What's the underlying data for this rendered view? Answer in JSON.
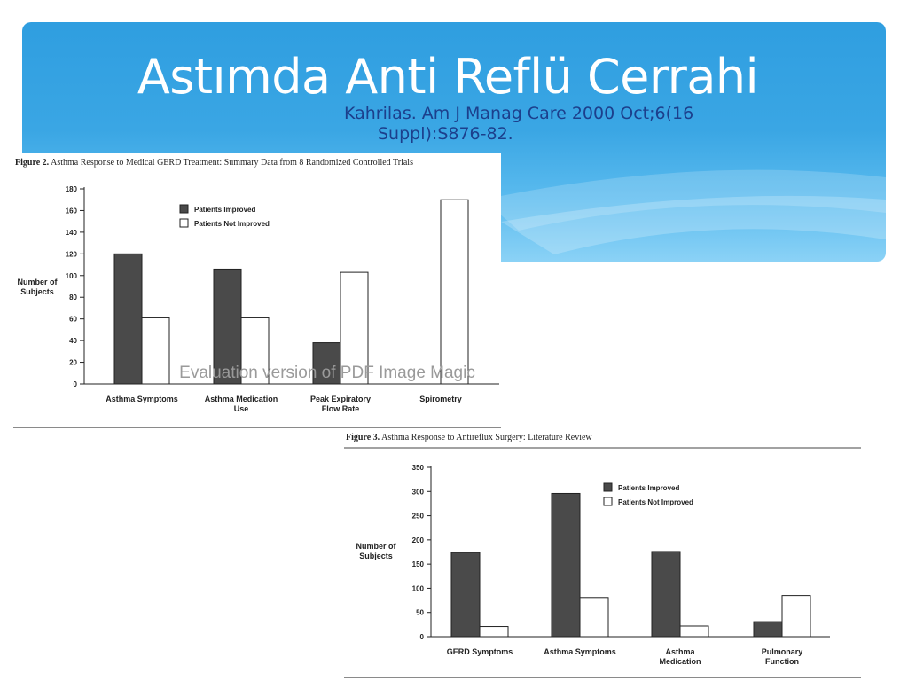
{
  "slide": {
    "title": "Astımda Anti Reflü Cerrahi",
    "citation_line1": "Kahrilas. Am J Manag Care 2000 Oct;6(16",
    "citation_line2": "Suppl):S876-82."
  },
  "figures": [
    {
      "caption_label": "Figure 2.",
      "caption_text": "Asthma Response to Medical GERD Treatment: Summary Data from 8 Randomized Controlled Trials",
      "watermark": "Evaluation version of PDF Image Magic"
    },
    {
      "caption_label": "Figure 3.",
      "caption_text": "Asthma Response to Antireflux Surgery: Literature Review"
    }
  ],
  "colors": {
    "improved": "#4a4a4a",
    "not_improved": "#ffffff",
    "banner": "#2f9ee0",
    "citation": "#1c3f8c"
  },
  "chart_data": [
    {
      "type": "bar",
      "title": "Asthma Response to Medical GERD Treatment: Summary Data from 8 Randomized Controlled Trials",
      "categories": [
        [
          "Asthma Symptoms"
        ],
        [
          "Asthma Medication",
          "Use"
        ],
        [
          "Peak Expiratory",
          "Flow Rate"
        ],
        [
          "Spirometry"
        ]
      ],
      "series": [
        {
          "name": "Patients Improved",
          "values": [
            120,
            106,
            38,
            0
          ]
        },
        {
          "name": "Patients Not Improved",
          "values": [
            61,
            61,
            103,
            170
          ]
        }
      ],
      "ylabel": [
        "Number of",
        "Subjects"
      ],
      "ylim": [
        0,
        180
      ],
      "yticks": [
        0,
        20,
        40,
        60,
        80,
        100,
        120,
        140,
        160,
        180
      ],
      "legend_position": "top-left",
      "grid": false
    },
    {
      "type": "bar",
      "title": "Asthma Response to Antireflux Surgery: Literature Review",
      "categories": [
        [
          "GERD Symptoms"
        ],
        [
          "Asthma Symptoms"
        ],
        [
          "Asthma",
          "Medication"
        ],
        [
          "Pulmonary",
          "Function"
        ]
      ],
      "series": [
        {
          "name": "Patients Improved",
          "values": [
            174,
            296,
            176,
            31
          ]
        },
        {
          "name": "Patients Not Improved",
          "values": [
            21,
            81,
            22,
            85
          ]
        }
      ],
      "ylabel": [
        "Number of",
        "Subjects"
      ],
      "ylim": [
        0,
        350
      ],
      "yticks": [
        0,
        50,
        100,
        150,
        200,
        250,
        300,
        350
      ],
      "legend_position": "top-right",
      "grid": false
    }
  ]
}
